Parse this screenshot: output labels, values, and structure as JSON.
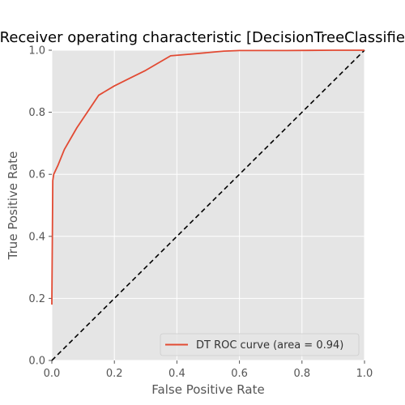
{
  "chart_data": {
    "type": "line",
    "title": "Receiver operating characteristic [DecisionTreeClassifier]",
    "xlabel": "False Positive Rate",
    "ylabel": "True Positive Rate",
    "xlim": [
      0.0,
      1.0
    ],
    "ylim": [
      0.0,
      1.0
    ],
    "xticks": [
      "0.0",
      "0.2",
      "0.4",
      "0.6",
      "0.8",
      "1.0"
    ],
    "yticks": [
      "0.0",
      "0.2",
      "0.4",
      "0.6",
      "0.8",
      "1.0"
    ],
    "grid": true,
    "legend_position": "lower-right",
    "series": [
      {
        "name": "DT ROC curve (area = 0.94)",
        "color": "#e24a33",
        "style": "solid",
        "x": [
          0.0,
          0.003,
          0.006,
          0.02,
          0.04,
          0.08,
          0.15,
          0.2,
          0.25,
          0.3,
          0.38,
          0.45,
          0.55,
          0.6,
          0.75,
          0.9,
          1.0
        ],
        "y": [
          0.18,
          0.58,
          0.6,
          0.63,
          0.68,
          0.75,
          0.855,
          0.885,
          0.91,
          0.935,
          0.982,
          0.988,
          0.997,
          0.999,
          0.999,
          1.0,
          1.0
        ]
      },
      {
        "name": "",
        "color": "#000000",
        "style": "dashed",
        "x": [
          0.0,
          1.0
        ],
        "y": [
          0.0,
          1.0
        ]
      }
    ]
  }
}
